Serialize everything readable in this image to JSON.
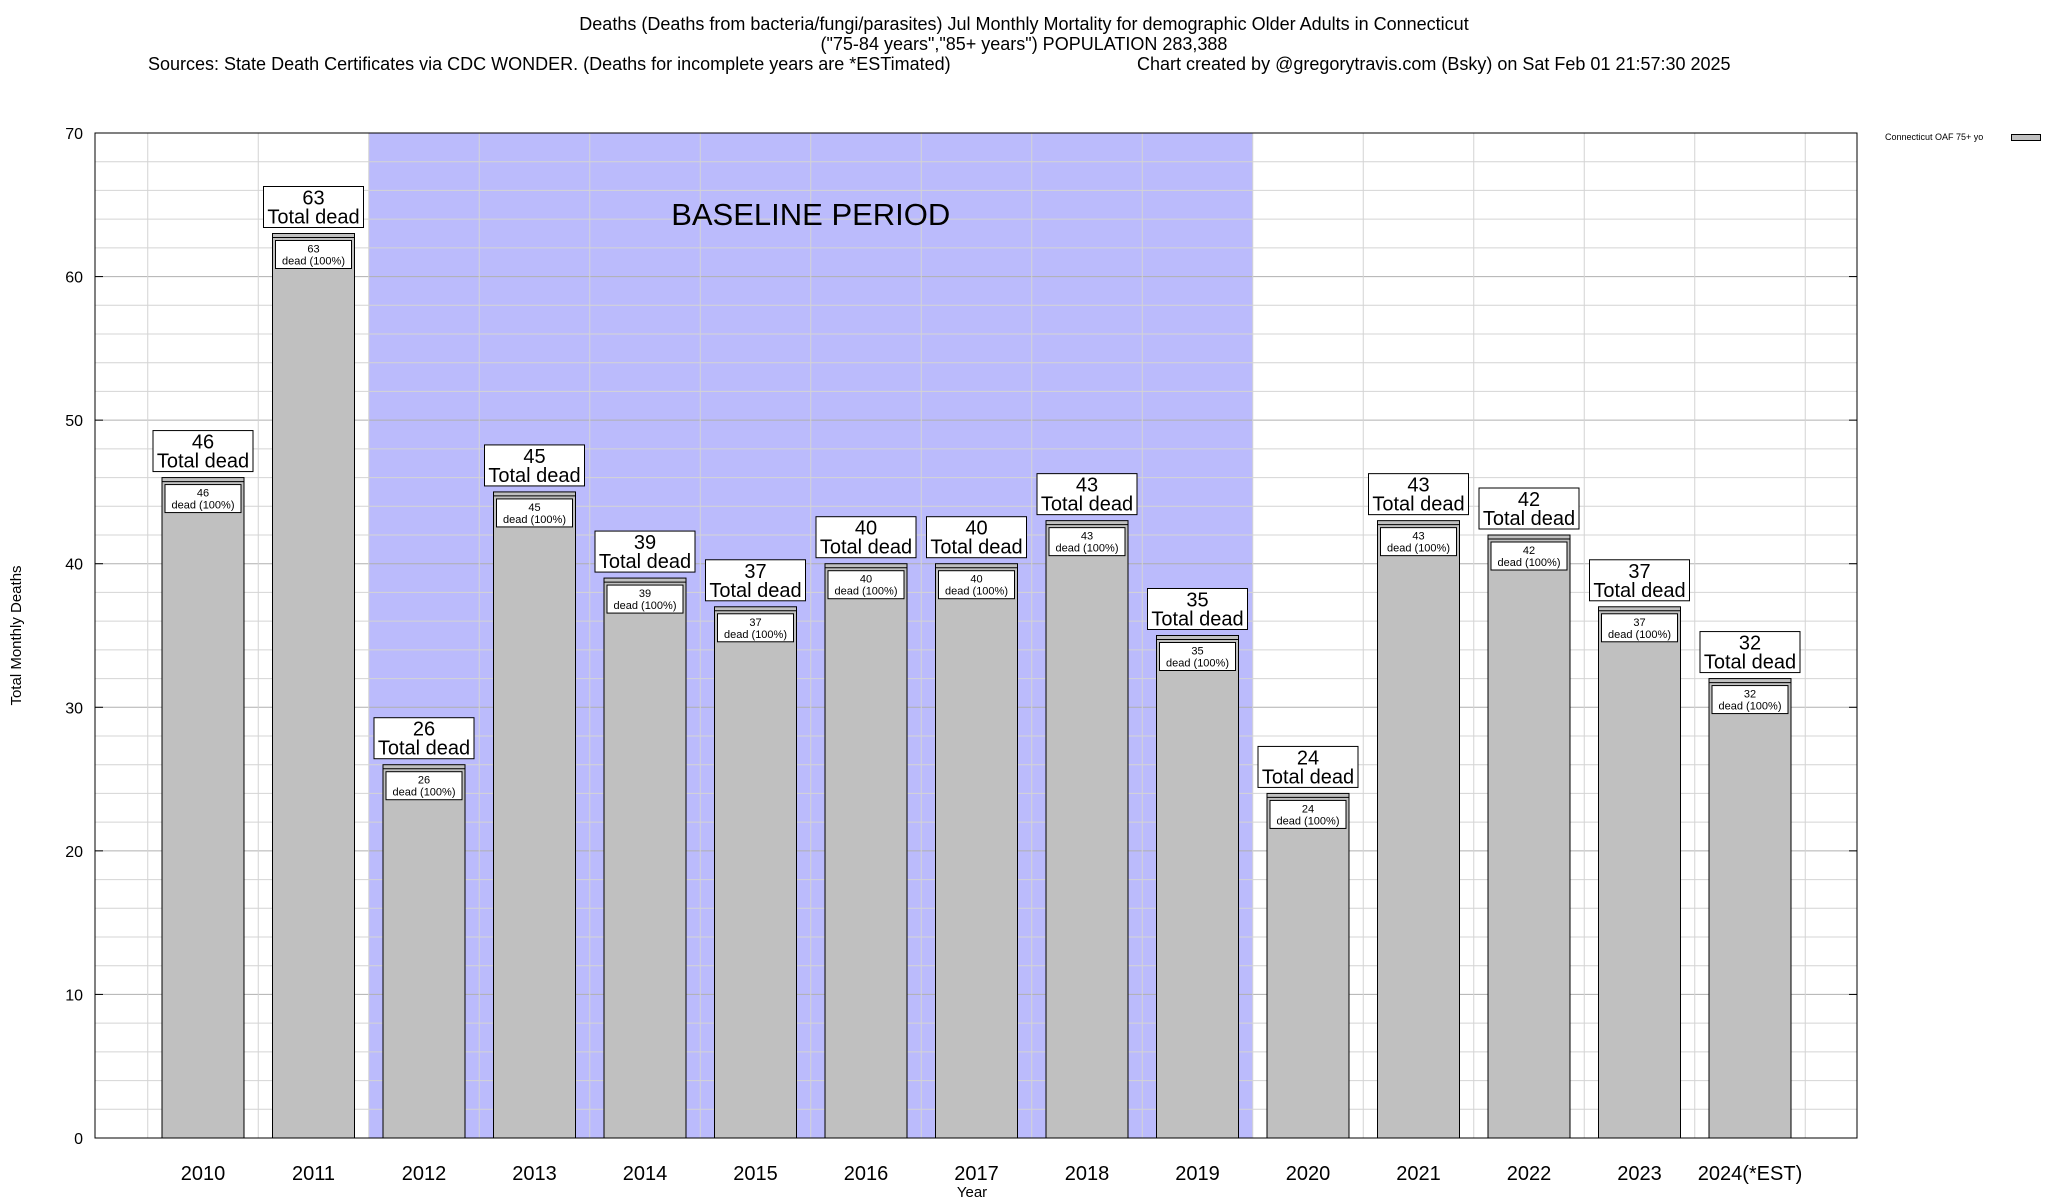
{
  "header": {
    "title_line1": "Deaths (Deaths from bacteria/fungi/parasites) Jul Monthly Mortality for demographic Older Adults in Connecticut",
    "title_line2": "(\"75-84 years\",\"85+ years\") POPULATION 283,388",
    "sources": "Sources: State Death Certificates via CDC WONDER. (Deaths for incomplete years are *ESTimated)",
    "credit": "Chart created by @gregorytravis.com (Bsky) on Sat Feb 01 21:57:30 2025"
  },
  "legend": {
    "label": "Connecticut OAF 75+ yo"
  },
  "chart_data": {
    "type": "bar",
    "title": "Deaths (Deaths from bacteria/fungi/parasites) Jul Monthly Mortality for demographic Older Adults in Connecticut",
    "xlabel": "Year",
    "ylabel": "Total Monthly Deaths",
    "ylim": [
      0,
      70
    ],
    "yticks": [
      0,
      10,
      20,
      30,
      40,
      50,
      60,
      70
    ],
    "grid": true,
    "legend_position": "top-right",
    "categories": [
      "2010",
      "2011",
      "2012",
      "2013",
      "2014",
      "2015",
      "2016",
      "2017",
      "2018",
      "2019",
      "2020",
      "2021",
      "2022",
      "2023",
      "2024(*EST)"
    ],
    "series": [
      {
        "name": "Connecticut OAF 75+ yo",
        "values": [
          46,
          63,
          26,
          45,
          39,
          37,
          40,
          40,
          43,
          35,
          24,
          43,
          42,
          37,
          32
        ]
      }
    ],
    "bar_label_top": "Total dead",
    "bar_label_inner": "dead (100%)",
    "baseline_period": {
      "label": "BASELINE PERIOD",
      "start": "2012",
      "end": "2019"
    },
    "colors": {
      "bar": "#c0c0c0",
      "baseline": "#bbbbfc"
    }
  }
}
